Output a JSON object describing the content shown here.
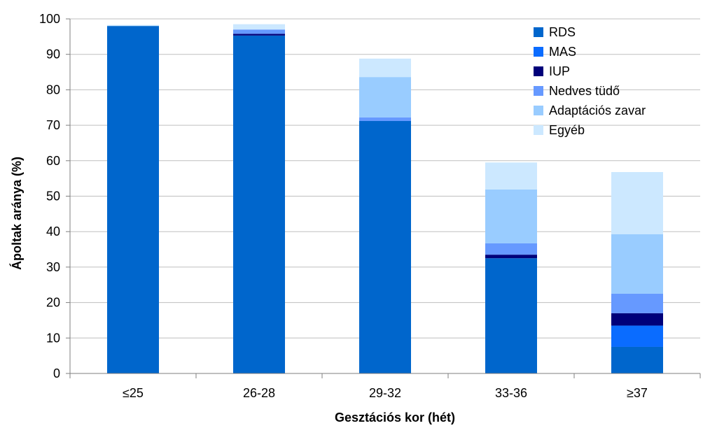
{
  "chart_data": {
    "type": "bar",
    "stacked": true,
    "title": "",
    "xlabel": "Gesztációs kor (hét)",
    "ylabel": "Ápoltak aránya (%)",
    "ylim": [
      0,
      100
    ],
    "yticks": [
      0,
      10,
      20,
      30,
      40,
      50,
      60,
      70,
      80,
      90,
      100
    ],
    "grid": true,
    "legend_position": "top-right",
    "categories": [
      "≤25",
      "26-28",
      "29-32",
      "33-36",
      "≥37"
    ],
    "series": [
      {
        "name": "RDS",
        "color": "#0066CC",
        "values": [
          98.0,
          95.3,
          71.2,
          32.5,
          7.5
        ]
      },
      {
        "name": "MAS",
        "color": "#0A6CFF",
        "values": [
          0,
          0,
          0,
          0,
          6.0
        ]
      },
      {
        "name": "IUP",
        "color": "#00007A",
        "values": [
          0,
          0.5,
          0,
          1.0,
          3.5
        ]
      },
      {
        "name": "Nedves tüdő",
        "color": "#6699FF",
        "values": [
          0,
          1.2,
          1.0,
          3.2,
          5.5
        ]
      },
      {
        "name": "Adaptációs zavar",
        "color": "#99CCFF",
        "values": [
          0,
          0,
          11.4,
          15.2,
          16.8
        ]
      },
      {
        "name": "Egyéb",
        "color": "#CCE8FF",
        "values": [
          0.3,
          1.5,
          5.2,
          7.6,
          17.5
        ]
      }
    ]
  }
}
